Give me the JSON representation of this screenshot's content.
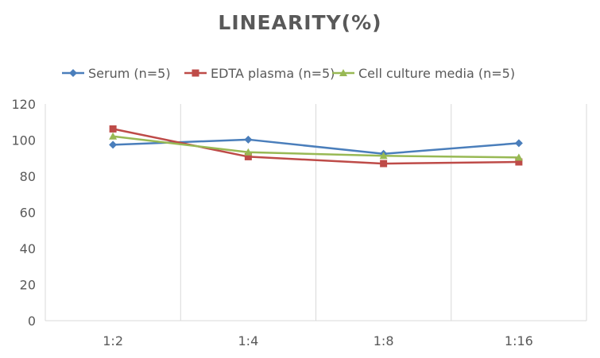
{
  "chart_data": {
    "type": "line",
    "title": "LINEARITY(%)",
    "categories": [
      "1:2",
      "1:4",
      "1:8",
      "1:16"
    ],
    "series": [
      {
        "name": "Serum (n=5)",
        "values": [
          97.4,
          100.3,
          92.4,
          98.3
        ],
        "color": "#4a7ebb",
        "marker": "diamond"
      },
      {
        "name": "EDTA plasma (n=5)",
        "values": [
          106.2,
          90.8,
          87.0,
          87.9
        ],
        "color": "#be4b48",
        "marker": "square"
      },
      {
        "name": "Cell culture media (n=5)",
        "values": [
          102.1,
          93.3,
          91.3,
          90.4
        ],
        "color": "#98b954",
        "marker": "triangle"
      }
    ],
    "ylim": [
      0,
      120
    ],
    "yticks": [
      0,
      20,
      40,
      60,
      80,
      100,
      120
    ],
    "grid": "vertical category separators",
    "legend": "top"
  }
}
